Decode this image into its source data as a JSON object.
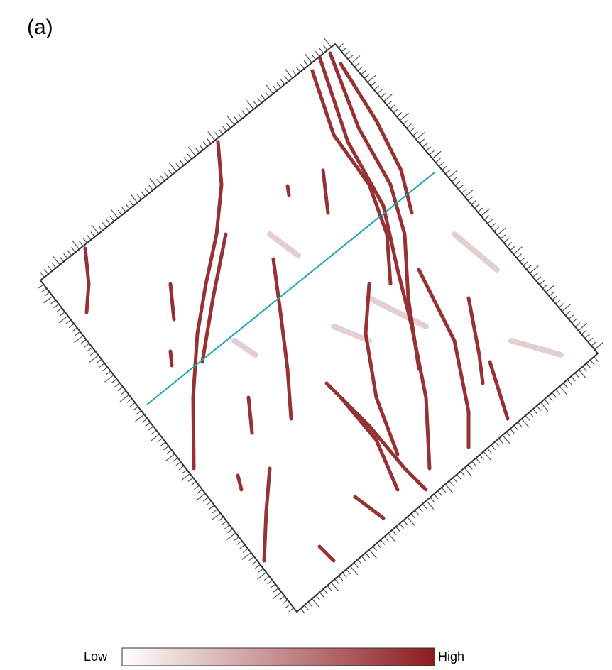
{
  "panel_label": "(a)",
  "colorbar": {
    "low_label": "Low",
    "high_label": "High"
  }
}
